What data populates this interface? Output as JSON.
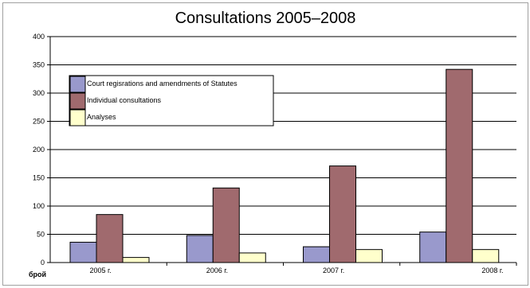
{
  "chart_data": {
    "type": "bar",
    "title": "Consultations 2005–2008",
    "xlabel": "брой",
    "ylabel": "",
    "categories": [
      "2005 г.",
      "2006 г.",
      "2007 г.",
      "2008 г."
    ],
    "series": [
      {
        "name": "Court regisrations and amendments of Statutes",
        "values": [
          36,
          48,
          28,
          54
        ],
        "color": "#9999cc"
      },
      {
        "name": "Individual consultations",
        "values": [
          85,
          132,
          171,
          342
        ],
        "color": "#a06a6e"
      },
      {
        "name": "Analyses",
        "values": [
          9,
          17,
          23,
          23
        ],
        "color": "#ffffcc"
      }
    ],
    "ylim": [
      0,
      400
    ],
    "yticks": [
      0,
      50,
      100,
      150,
      200,
      250,
      300,
      350,
      400
    ],
    "grid": true,
    "legend_position": "top-left"
  }
}
